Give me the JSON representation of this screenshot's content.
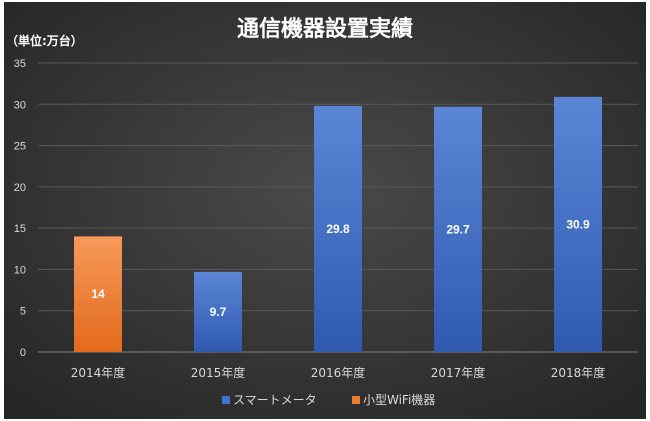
{
  "chart_data": {
    "type": "bar",
    "title": "通信機器設置実績",
    "unit_label": "（単位:万台）",
    "categories": [
      "2014年度",
      "2015年度",
      "2016年度",
      "2017年度",
      "2018年度"
    ],
    "series": [
      {
        "name": "スマートメータ",
        "color": "#4472c4",
        "values": [
          null,
          9.7,
          29.8,
          29.7,
          30.9
        ]
      },
      {
        "name": "小型WiFi機器",
        "color": "#ed7d31",
        "values": [
          14,
          null,
          null,
          null,
          null
        ]
      }
    ],
    "data_labels": [
      "14",
      "9.7",
      "29.8",
      "29.7",
      "30.9"
    ],
    "ylim": [
      0,
      35
    ],
    "yticks": [
      "0",
      "5",
      "10",
      "15",
      "20",
      "25",
      "30",
      "35"
    ],
    "grid": true,
    "legend_position": "bottom",
    "colors": {
      "background": "#3b3b3b",
      "gridline": "#595959",
      "text": "#d9d9d9"
    }
  }
}
